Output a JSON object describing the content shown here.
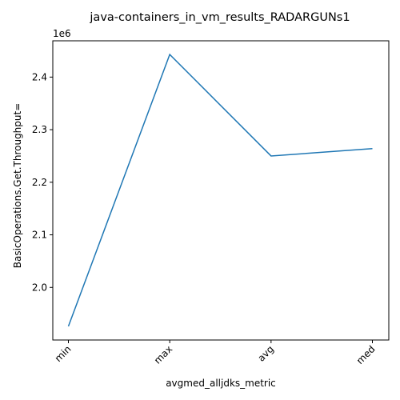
{
  "chart_data": {
    "type": "line",
    "title": "java-containers_in_vm_results_RADARGUNs1",
    "xlabel": "avgmed_alljdks_metric",
    "ylabel": "BasicOperations.Get.Throughput=",
    "offset_text": "1e6",
    "categories": [
      "min",
      "max",
      "avg",
      "med"
    ],
    "series": [
      {
        "values": [
          1926000,
          2443000,
          2250000,
          2264000
        ],
        "color": "#1f77b4"
      }
    ],
    "yticks": [
      2.0,
      2.1,
      2.2,
      2.3,
      2.4
    ],
    "ytick_labels": [
      "2.0",
      "2.1",
      "2.2",
      "2.3",
      "2.4"
    ],
    "ylim": [
      1900000,
      2469000
    ],
    "grid": false,
    "legend": "none"
  }
}
